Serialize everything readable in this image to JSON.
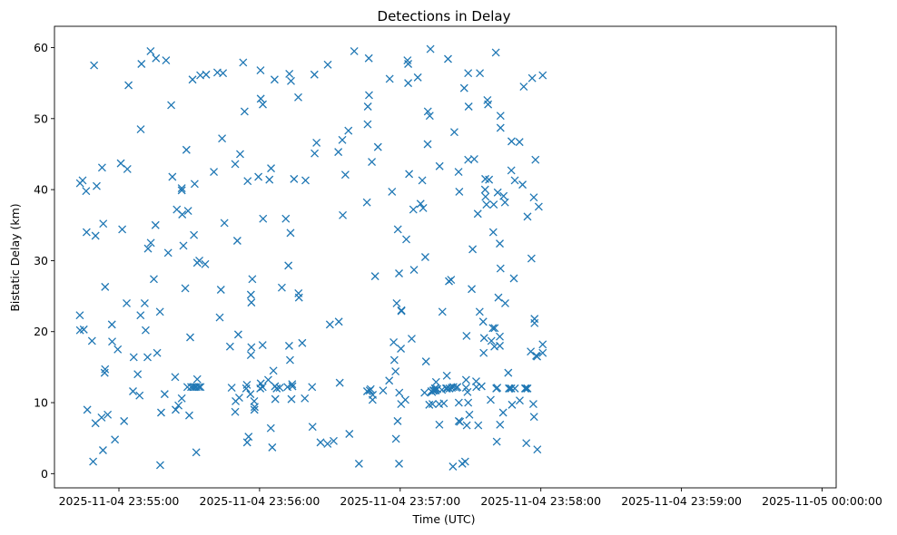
{
  "chart_data": {
    "type": "scatter",
    "title": "Detections in Delay",
    "xlabel": "Time (UTC)",
    "ylabel": "Bistatic Delay (km)",
    "marker": "x",
    "color": "#1f77b4",
    "x_unit": "seconds after 2025-11-04 23:54:00",
    "xlim": [
      32.5,
      366
    ],
    "ylim": [
      -2,
      63
    ],
    "x_ticks": [
      {
        "value": 60,
        "label": "2025-11-04 23:55:00"
      },
      {
        "value": 120,
        "label": "2025-11-04 23:56:00"
      },
      {
        "value": 180,
        "label": "2025-11-04 23:57:00"
      },
      {
        "value": 240,
        "label": "2025-11-04 23:58:00"
      },
      {
        "value": 300,
        "label": "2025-11-04 23:59:00"
      },
      {
        "value": 360,
        "label": "2025-11-05 00:00:00"
      }
    ],
    "y_ticks": [
      0,
      10,
      20,
      30,
      40,
      50,
      60
    ],
    "points": [
      [
        43.4,
        40.9
      ],
      [
        44.5,
        41.3
      ],
      [
        46.0,
        39.8
      ],
      [
        43.3,
        22.3
      ],
      [
        43.4,
        20.2
      ],
      [
        45.0,
        20.3
      ],
      [
        46.5,
        9.0
      ],
      [
        48.5,
        18.7
      ],
      [
        49.0,
        1.7
      ],
      [
        49.4,
        57.5
      ],
      [
        50.0,
        7.1
      ],
      [
        50.5,
        40.5
      ],
      [
        50.0,
        33.5
      ],
      [
        46.2,
        34.0
      ],
      [
        52.8,
        43.1
      ],
      [
        53.3,
        35.2
      ],
      [
        54.1,
        26.3
      ],
      [
        54.1,
        14.7
      ],
      [
        53.9,
        14.2
      ],
      [
        55.2,
        8.3
      ],
      [
        53.2,
        3.3
      ],
      [
        52.6,
        7.9
      ],
      [
        57.0,
        21.0
      ],
      [
        57.1,
        18.6
      ],
      [
        58.3,
        4.8
      ],
      [
        59.5,
        17.5
      ],
      [
        60.8,
        43.7
      ],
      [
        61.4,
        34.4
      ],
      [
        62.2,
        7.4
      ],
      [
        63.3,
        24.0
      ],
      [
        63.6,
        42.9
      ],
      [
        64.1,
        54.7
      ],
      [
        66.0,
        11.6
      ],
      [
        66.3,
        16.4
      ],
      [
        68.0,
        14.0
      ],
      [
        68.8,
        11.0
      ],
      [
        69.2,
        22.3
      ],
      [
        69.3,
        48.5
      ],
      [
        69.6,
        57.7
      ],
      [
        71.0,
        24.0
      ],
      [
        71.4,
        20.2
      ],
      [
        72.2,
        16.4
      ],
      [
        72.4,
        31.7
      ],
      [
        73.6,
        32.5
      ],
      [
        73.5,
        59.5
      ],
      [
        74.9,
        27.4
      ],
      [
        75.8,
        58.5
      ],
      [
        75.6,
        35.0
      ],
      [
        76.3,
        17.0
      ],
      [
        77.5,
        22.8
      ],
      [
        77.6,
        1.2
      ],
      [
        78.0,
        8.6
      ],
      [
        79.5,
        11.2
      ],
      [
        80.1,
        58.2
      ],
      [
        81.0,
        31.1
      ],
      [
        82.3,
        51.9
      ],
      [
        82.8,
        41.8
      ],
      [
        84.2,
        9.0
      ],
      [
        84.0,
        13.6
      ],
      [
        84.7,
        37.2
      ],
      [
        85.4,
        9.6
      ],
      [
        86.8,
        10.6
      ],
      [
        86.8,
        40.2
      ],
      [
        86.8,
        39.9
      ],
      [
        87.5,
        32.1
      ],
      [
        87.0,
        36.5
      ],
      [
        88.3,
        26.1
      ],
      [
        88.8,
        45.6
      ],
      [
        89.2,
        12.2
      ],
      [
        89.5,
        37.0
      ],
      [
        90.4,
        19.2
      ],
      [
        90.0,
        8.2
      ],
      [
        90.8,
        12.2
      ],
      [
        91.4,
        55.5
      ],
      [
        91.6,
        12.2
      ],
      [
        92.3,
        40.8
      ],
      [
        92.0,
        33.6
      ],
      [
        92.4,
        12.2
      ],
      [
        93.0,
        3.0
      ],
      [
        93.1,
        12.2
      ],
      [
        93.4,
        13.3
      ],
      [
        93.4,
        29.7
      ],
      [
        94.1,
        12.2
      ],
      [
        94.3,
        30.0
      ],
      [
        94.7,
        56.1
      ],
      [
        94.8,
        12.2
      ],
      [
        96.8,
        29.5
      ],
      [
        97.2,
        56.2
      ],
      [
        100.5,
        42.5
      ],
      [
        102.0,
        56.5
      ],
      [
        103.0,
        22.0
      ],
      [
        103.5,
        25.9
      ],
      [
        104.0,
        47.2
      ],
      [
        104.4,
        56.4
      ],
      [
        105.0,
        35.3
      ],
      [
        107.4,
        17.9
      ],
      [
        108.1,
        12.1
      ],
      [
        109.6,
        43.6
      ],
      [
        109.6,
        8.7
      ],
      [
        109.8,
        10.2
      ],
      [
        110.5,
        32.8
      ],
      [
        110.9,
        19.6
      ],
      [
        111.3,
        10.7
      ],
      [
        111.7,
        45.0
      ],
      [
        113.0,
        57.9
      ],
      [
        113.6,
        51.0
      ],
      [
        114.3,
        12.0
      ],
      [
        114.6,
        12.5
      ],
      [
        114.9,
        41.2
      ],
      [
        114.7,
        4.4
      ],
      [
        115.3,
        5.2
      ],
      [
        116.1,
        11.2
      ],
      [
        116.5,
        17.8
      ],
      [
        116.5,
        24.1
      ],
      [
        116.9,
        27.4
      ],
      [
        116.3,
        16.7
      ],
      [
        116.3,
        25.2
      ],
      [
        117.7,
        10.2
      ],
      [
        117.9,
        9.4
      ],
      [
        117.8,
        9.0
      ],
      [
        119.5,
        41.8
      ],
      [
        120.3,
        12.0
      ],
      [
        120.5,
        12.7
      ],
      [
        120.4,
        56.8
      ],
      [
        120.5,
        52.8
      ],
      [
        121.3,
        18.1
      ],
      [
        121.4,
        52.0
      ],
      [
        121.5,
        35.9
      ],
      [
        121.3,
        12.2
      ],
      [
        123.7,
        13.2
      ],
      [
        124.2,
        41.4
      ],
      [
        124.9,
        43.0
      ],
      [
        124.8,
        6.4
      ],
      [
        125.4,
        3.7
      ],
      [
        125.9,
        14.5
      ],
      [
        126.4,
        55.5
      ],
      [
        126.7,
        10.5
      ],
      [
        126.6,
        12.3
      ],
      [
        127.3,
        12.0
      ],
      [
        128.6,
        12.1
      ],
      [
        129.5,
        26.2
      ],
      [
        131.2,
        35.9
      ],
      [
        131.9,
        12.2
      ],
      [
        132.3,
        29.3
      ],
      [
        132.6,
        18.0
      ],
      [
        132.7,
        56.3
      ],
      [
        133.0,
        16.0
      ],
      [
        133.2,
        33.9
      ],
      [
        133.4,
        55.3
      ],
      [
        133.6,
        10.5
      ],
      [
        133.9,
        12.6
      ],
      [
        134.0,
        12.3
      ],
      [
        134.7,
        41.5
      ],
      [
        136.5,
        53.0
      ],
      [
        136.6,
        25.4
      ],
      [
        136.8,
        24.8
      ],
      [
        138.2,
        18.4
      ],
      [
        139.3,
        10.6
      ],
      [
        139.6,
        41.3
      ],
      [
        142.4,
        12.2
      ],
      [
        142.6,
        6.6
      ],
      [
        143.4,
        56.2
      ],
      [
        143.5,
        45.1
      ],
      [
        144.3,
        46.6
      ],
      [
        146.0,
        4.4
      ],
      [
        149.0,
        4.2
      ],
      [
        149.1,
        57.6
      ],
      [
        150.0,
        21.0
      ],
      [
        151.6,
        4.6
      ],
      [
        153.8,
        21.4
      ],
      [
        153.6,
        45.3
      ],
      [
        154.2,
        12.8
      ],
      [
        155.3,
        47.0
      ],
      [
        155.5,
        36.4
      ],
      [
        156.6,
        42.1
      ],
      [
        157.9,
        48.3
      ],
      [
        158.3,
        5.6
      ],
      [
        160.4,
        59.5
      ],
      [
        162.4,
        1.4
      ],
      [
        165.8,
        38.2
      ],
      [
        165.9,
        11.6
      ],
      [
        166.1,
        49.2
      ],
      [
        166.2,
        51.7
      ],
      [
        166.6,
        58.5
      ],
      [
        166.7,
        53.3
      ],
      [
        167.0,
        11.7
      ],
      [
        167.4,
        11.9
      ],
      [
        167.9,
        43.9
      ],
      [
        168.2,
        10.4
      ],
      [
        168.3,
        11.1
      ],
      [
        169.3,
        27.8
      ],
      [
        170.5,
        46.0
      ],
      [
        172.7,
        11.7
      ],
      [
        175.3,
        13.1
      ],
      [
        175.5,
        55.6
      ],
      [
        176.5,
        39.7
      ],
      [
        177.2,
        18.5
      ],
      [
        177.5,
        16.0
      ],
      [
        178.0,
        14.4
      ],
      [
        178.2,
        4.9
      ],
      [
        178.5,
        24.0
      ],
      [
        179.0,
        34.4
      ],
      [
        178.9,
        7.4
      ],
      [
        179.5,
        28.2
      ],
      [
        179.5,
        1.4
      ],
      [
        179.6,
        11.4
      ],
      [
        180.3,
        17.6
      ],
      [
        180.4,
        9.8
      ],
      [
        180.5,
        22.9
      ],
      [
        180.5,
        23.0
      ],
      [
        182.2,
        10.4
      ],
      [
        182.6,
        33.0
      ],
      [
        183.1,
        58.2
      ],
      [
        183.4,
        55.0
      ],
      [
        183.4,
        57.7
      ],
      [
        183.8,
        42.2
      ],
      [
        184.9,
        19.0
      ],
      [
        185.6,
        37.2
      ],
      [
        185.9,
        28.7
      ],
      [
        187.5,
        55.8
      ],
      [
        188.7,
        38.0
      ],
      [
        189.4,
        41.3
      ],
      [
        189.8,
        37.4
      ],
      [
        190.4,
        11.4
      ],
      [
        190.7,
        30.5
      ],
      [
        191.0,
        15.8
      ],
      [
        191.7,
        46.4
      ],
      [
        191.8,
        51.0
      ],
      [
        192.6,
        50.4
      ],
      [
        192.4,
        9.7
      ],
      [
        192.9,
        59.8
      ],
      [
        193.3,
        11.6
      ],
      [
        193.6,
        11.5
      ],
      [
        193.8,
        9.8
      ],
      [
        194.1,
        11.7
      ],
      [
        194.4,
        11.7
      ],
      [
        194.8,
        12.0
      ],
      [
        195.3,
        12.9
      ],
      [
        195.1,
        11.7
      ],
      [
        195.8,
        11.9
      ],
      [
        196.7,
        6.9
      ],
      [
        196.6,
        9.8
      ],
      [
        196.8,
        43.3
      ],
      [
        197.8,
        11.8
      ],
      [
        198.0,
        22.8
      ],
      [
        198.6,
        9.9
      ],
      [
        199.6,
        12.0
      ],
      [
        199.9,
        13.8
      ],
      [
        200.0,
        12.0
      ],
      [
        200.4,
        58.4
      ],
      [
        200.8,
        27.1
      ],
      [
        201.0,
        12.0
      ],
      [
        201.7,
        27.3
      ],
      [
        202.0,
        12.1
      ],
      [
        202.7,
        12.2
      ],
      [
        202.5,
        1.0
      ],
      [
        203.1,
        48.1
      ],
      [
        203.9,
        12.1
      ],
      [
        204.4,
        12.2
      ],
      [
        204.9,
        42.5
      ],
      [
        205.2,
        39.7
      ],
      [
        205.0,
        7.4
      ],
      [
        205.0,
        10.0
      ],
      [
        205.5,
        7.3
      ],
      [
        206.5,
        1.4
      ],
      [
        207.3,
        54.3
      ],
      [
        207.7,
        1.7
      ],
      [
        208.1,
        13.2
      ],
      [
        208.1,
        12.1
      ],
      [
        208.3,
        19.4
      ],
      [
        208.4,
        6.8
      ],
      [
        208.7,
        11.5
      ],
      [
        209.0,
        10.0
      ],
      [
        209.0,
        44.2
      ],
      [
        209.0,
        56.4
      ],
      [
        209.2,
        51.7
      ],
      [
        209.5,
        8.3
      ],
      [
        210.5,
        26.0
      ],
      [
        210.9,
        31.6
      ],
      [
        211.6,
        44.3
      ],
      [
        212.4,
        13.0
      ],
      [
        212.5,
        12.2
      ],
      [
        213.1,
        36.6
      ],
      [
        213.3,
        6.8
      ],
      [
        213.9,
        22.8
      ],
      [
        214.0,
        56.4
      ],
      [
        214.7,
        12.3
      ],
      [
        215.4,
        21.4
      ],
      [
        215.6,
        17.0
      ],
      [
        215.8,
        19.1
      ],
      [
        216.3,
        41.5
      ],
      [
        216.2,
        40.0
      ],
      [
        216.4,
        39.0
      ],
      [
        216.8,
        37.9
      ],
      [
        217.2,
        52.6
      ],
      [
        217.5,
        52.0
      ],
      [
        217.9,
        41.4
      ],
      [
        218.6,
        10.4
      ],
      [
        218.9,
        18.7
      ],
      [
        219.5,
        20.5
      ],
      [
        219.9,
        37.9
      ],
      [
        219.7,
        34.0
      ],
      [
        220.3,
        20.5
      ],
      [
        220.2,
        17.9
      ],
      [
        220.8,
        59.3
      ],
      [
        221.0,
        12.0
      ],
      [
        221.2,
        4.5
      ],
      [
        221.4,
        12.1
      ],
      [
        221.6,
        39.6
      ],
      [
        221.9,
        24.8
      ],
      [
        222.5,
        18.0
      ],
      [
        222.5,
        19.3
      ],
      [
        222.6,
        6.9
      ],
      [
        222.8,
        50.4
      ],
      [
        222.8,
        48.7
      ],
      [
        222.8,
        28.9
      ],
      [
        222.5,
        32.4
      ],
      [
        223.9,
        8.6
      ],
      [
        224.1,
        39.1
      ],
      [
        224.7,
        38.2
      ],
      [
        224.8,
        24.0
      ],
      [
        226.1,
        14.2
      ],
      [
        226.4,
        12.0
      ],
      [
        226.7,
        12.0
      ],
      [
        227.4,
        12.0
      ],
      [
        227.4,
        42.7
      ],
      [
        227.5,
        46.8
      ],
      [
        227.7,
        9.7
      ],
      [
        228.5,
        27.5
      ],
      [
        228.9,
        41.3
      ],
      [
        228.9,
        12.0
      ],
      [
        230.9,
        46.7
      ],
      [
        231.0,
        10.3
      ],
      [
        232.2,
        40.7
      ],
      [
        232.7,
        54.5
      ],
      [
        233.3,
        12.0
      ],
      [
        233.7,
        12.0
      ],
      [
        233.8,
        4.3
      ],
      [
        234.3,
        36.2
      ],
      [
        234.3,
        12.0
      ],
      [
        235.7,
        17.2
      ],
      [
        236.0,
        30.3
      ],
      [
        236.3,
        55.7
      ],
      [
        236.8,
        9.8
      ],
      [
        237.0,
        38.9
      ],
      [
        237.1,
        8.0
      ],
      [
        237.3,
        21.8
      ],
      [
        237.3,
        21.2
      ],
      [
        237.7,
        44.2
      ],
      [
        238.0,
        16.6
      ],
      [
        238.4,
        16.5
      ],
      [
        238.5,
        3.4
      ],
      [
        239.1,
        37.6
      ],
      [
        240.8,
        56.1
      ],
      [
        240.8,
        18.2
      ],
      [
        240.8,
        17.0
      ]
    ]
  }
}
